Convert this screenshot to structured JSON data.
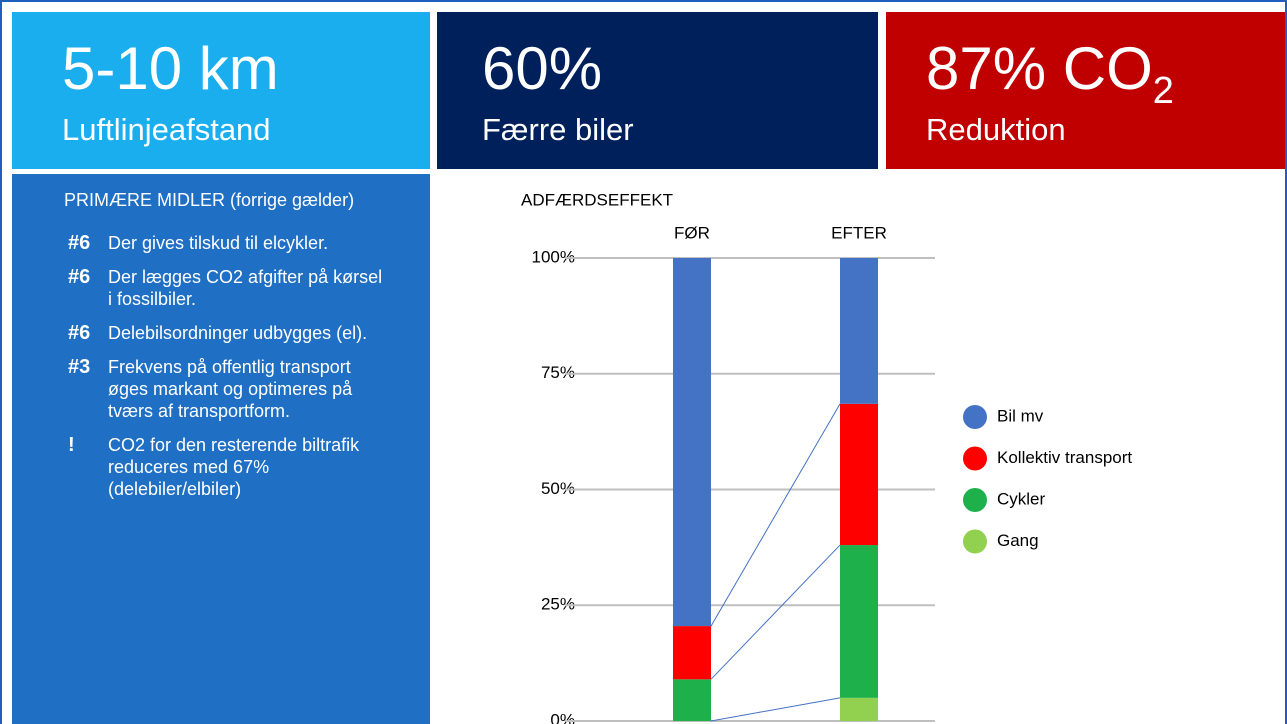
{
  "panels": [
    {
      "value": "5-10 km",
      "label": "Luftlinjeafstand"
    },
    {
      "value": "60%",
      "label": "Færre biler"
    },
    {
      "value": "87% CO",
      "subscript": "2",
      "label": "Reduktion"
    }
  ],
  "list": {
    "heading": "PRIMÆRE MIDLER (forrige gælder)",
    "items": [
      {
        "marker": "#6",
        "text": "Der gives tilskud til elcykler."
      },
      {
        "marker": "#6",
        "text": "Der lægges CO2 afgifter på kørsel i fossilbiler."
      },
      {
        "marker": "#6",
        "text": "Delebilsordninger udbygges (el)."
      },
      {
        "marker": "#3",
        "text": "Frekvens på offentlig transport øges markant og optimeres på tværs af transportform."
      },
      {
        "marker": "!",
        "text": "CO2 for den resterende biltrafik reduceres med 67% (delebiler/elbiler)"
      }
    ]
  },
  "chart_data": {
    "type": "stacked_bar",
    "title": "ADFÆRDSEFFEKT",
    "categories": [
      "FØR",
      "EFTER"
    ],
    "series": [
      {
        "name": "Bil mv",
        "color": "#4472c4",
        "values": [
          79.5,
          31.5
        ]
      },
      {
        "name": "Kollektiv transport",
        "color": "#ff0000",
        "values": [
          11.5,
          30.5
        ]
      },
      {
        "name": "Cykler",
        "color": "#1db04b",
        "values": [
          9,
          33
        ]
      },
      {
        "name": "Gang",
        "color": "#92d050",
        "values": [
          0,
          5
        ]
      }
    ],
    "ylim": [
      0,
      100
    ],
    "yticks": [
      {
        "value": 0,
        "label": "0%"
      },
      {
        "value": 25,
        "label": "25%"
      },
      {
        "value": 50,
        "label": "50%"
      },
      {
        "value": 75,
        "label": "75%"
      },
      {
        "value": 100,
        "label": "100%"
      }
    ],
    "grid": true,
    "legend": "right"
  }
}
